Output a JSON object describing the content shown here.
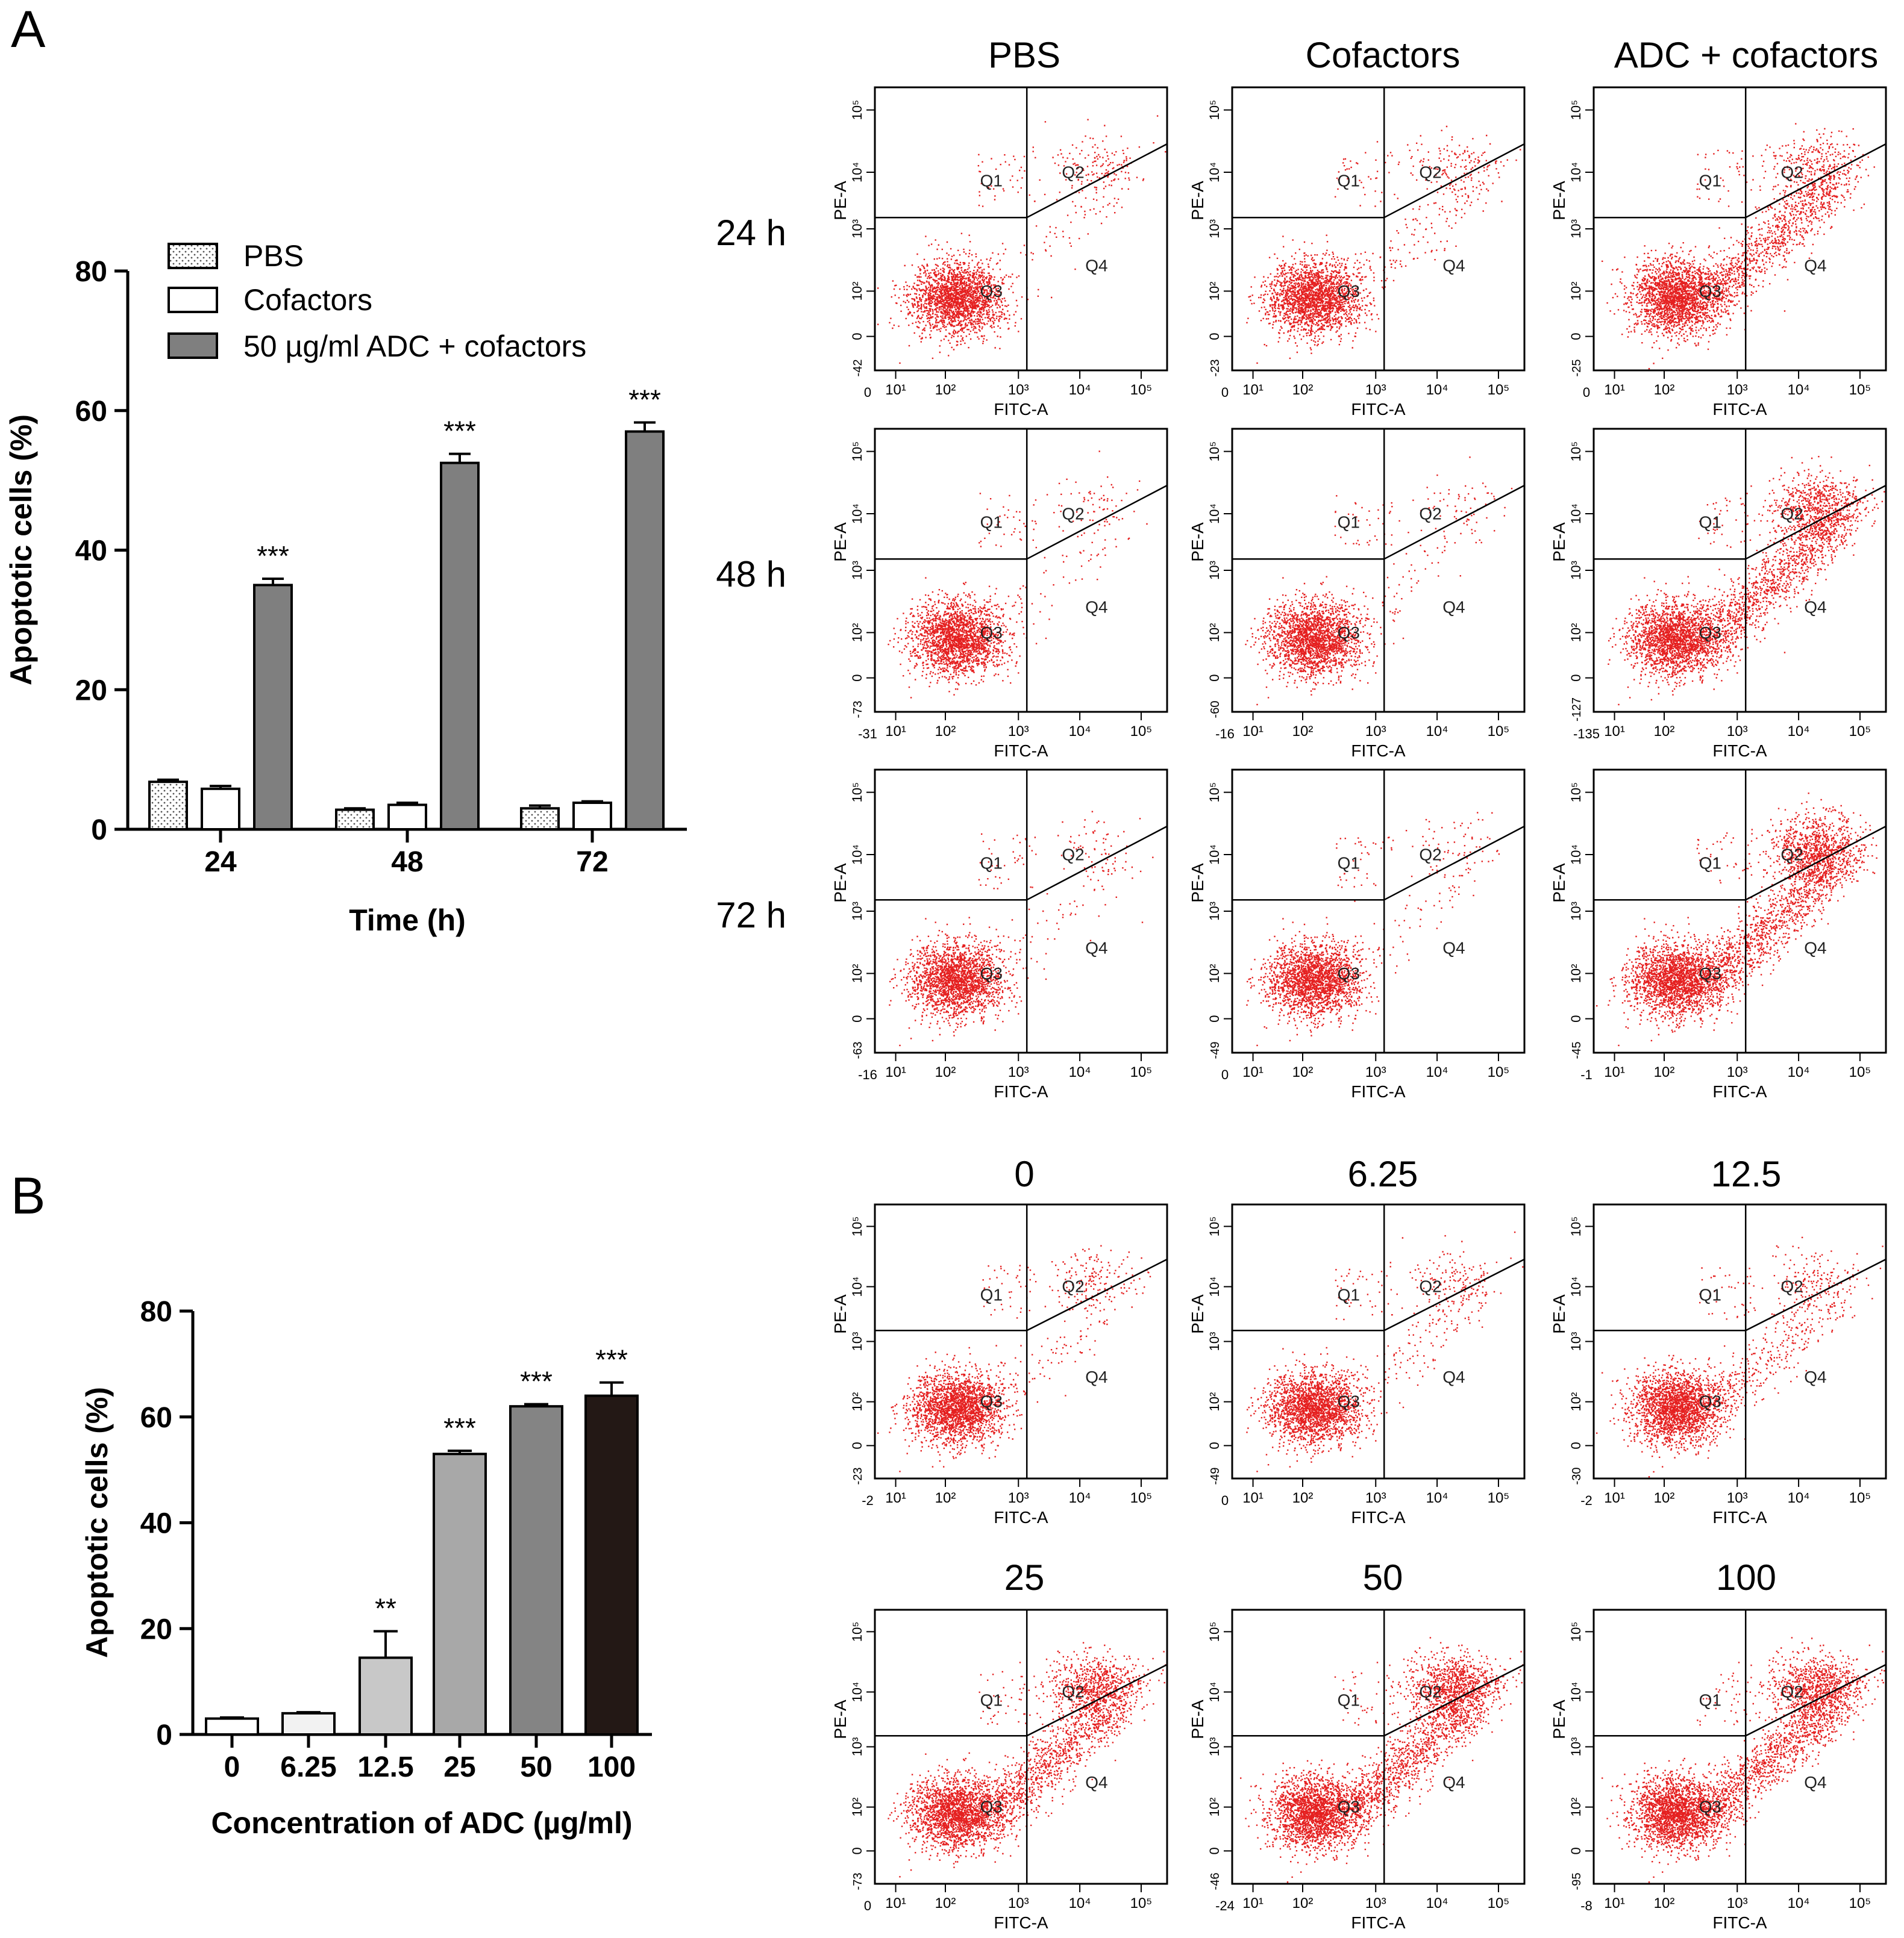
{
  "colors": {
    "dot": "#e52020",
    "axis": "#000000",
    "bar_dark_gray": "#7f7f7f",
    "bar_light": "#f2f2f2",
    "bar_b_12_5": "#c8c8c8",
    "bar_b_25": "#a8a8a8",
    "bar_b_50": "#848484",
    "bar_b_100": "#231815"
  },
  "panels": {
    "A": "A",
    "B": "B"
  },
  "chart_data": [
    {
      "id": "A-bar",
      "type": "bar",
      "title": "",
      "xlabel": "Time (h)",
      "ylabel": "Apoptotic cells (%)",
      "ylim": [
        0,
        80
      ],
      "yticks": [
        "0",
        "20",
        "40",
        "60",
        "80"
      ],
      "categories": [
        "24",
        "48",
        "72"
      ],
      "series": [
        {
          "name": "PBS",
          "values": [
            6.8,
            2.8,
            3.0
          ],
          "errors": [
            0.3,
            0.2,
            0.4
          ],
          "fill": "dotted"
        },
        {
          "name": "Cofactors",
          "values": [
            5.8,
            3.5,
            3.8
          ],
          "errors": [
            0.4,
            0.3,
            0.2
          ],
          "fill": "white"
        },
        {
          "name": "50 µg/ml ADC + cofactors",
          "values": [
            35.0,
            52.5,
            57.0
          ],
          "errors": [
            0.9,
            1.3,
            1.3
          ],
          "fill": "gray"
        }
      ],
      "annotations": [
        "***",
        "***",
        "***"
      ],
      "legend": "top-left"
    },
    {
      "id": "B-bar",
      "type": "bar",
      "title": "",
      "xlabel": "Concentration of ADC (µg/ml)",
      "ylabel": "Apoptotic cells (%)",
      "ylim": [
        0,
        80
      ],
      "yticks": [
        "0",
        "20",
        "40",
        "60",
        "80"
      ],
      "categories": [
        "0",
        "6.25",
        "12.5",
        "25",
        "50",
        "100"
      ],
      "values": [
        3.0,
        4.0,
        14.5,
        53.0,
        62.0,
        64.0
      ],
      "errors": [
        0.2,
        0.2,
        5.0,
        0.6,
        0.4,
        2.5
      ],
      "annotations": [
        "",
        "",
        "**",
        "***",
        "***",
        "***"
      ]
    },
    {
      "id": "A-flow",
      "type": "scatter",
      "column_titles": [
        "PBS",
        "Cofactors",
        "ADC + cofactors"
      ],
      "row_titles": [
        "24 h",
        "48 h",
        "72 h"
      ],
      "xlabel": "FITC-A",
      "ylabel": "PE-A",
      "quadrants": [
        "Q1",
        "Q2",
        "Q3",
        "Q4"
      ],
      "x_tick_labels": [
        "10¹",
        "10²",
        "10³",
        "10⁴",
        "10⁵"
      ],
      "y_tick_labels": [
        "10⁵",
        "10⁴",
        "10³",
        "10²",
        "0"
      ],
      "plots": [
        {
          "xmin": "0",
          "ymin": "-42",
          "q2": 0.05,
          "q4": 0.02
        },
        {
          "xmin": "0",
          "ymin": "-23",
          "q2": 0.05,
          "q4": 0.04
        },
        {
          "xmin": "0",
          "ymin": "-25",
          "q2": 0.1,
          "q4": 0.28
        },
        {
          "xmin": "-31",
          "ymin": "-73",
          "q2": 0.02,
          "q4": 0.02
        },
        {
          "xmin": "-16",
          "ymin": "-60",
          "q2": 0.02,
          "q4": 0.02
        },
        {
          "xmin": "-135",
          "ymin": "-127",
          "q2": 0.22,
          "q4": 0.32
        },
        {
          "xmin": "-16",
          "ymin": "-63",
          "q2": 0.02,
          "q4": 0.02
        },
        {
          "xmin": "0",
          "ymin": "-49",
          "q2": 0.02,
          "q4": 0.02
        },
        {
          "xmin": "-1",
          "ymin": "-45",
          "q2": 0.28,
          "q4": 0.32
        }
      ]
    },
    {
      "id": "B-flow",
      "type": "scatter",
      "column_titles": [
        "0",
        "6.25",
        "12.5",
        "25",
        "50",
        "100"
      ],
      "xlabel": "FITC-A",
      "ylabel": "PE-A",
      "quadrants": [
        "Q1",
        "Q2",
        "Q3",
        "Q4"
      ],
      "x_tick_labels": [
        "10¹",
        "10²",
        "10³",
        "10⁴",
        "10⁵"
      ],
      "y_tick_labels": [
        "10⁵",
        "10⁴",
        "10³",
        "10²",
        "0"
      ],
      "plots": [
        {
          "xmin": "-2",
          "ymin": "-23",
          "q2": 0.05,
          "q4": 0.03
        },
        {
          "xmin": "0",
          "ymin": "-49",
          "q2": 0.05,
          "q4": 0.04
        },
        {
          "xmin": "-2",
          "ymin": "-30",
          "q2": 0.05,
          "q4": 0.1
        },
        {
          "xmin": "0",
          "ymin": "-73",
          "q2": 0.22,
          "q4": 0.3
        },
        {
          "xmin": "-24",
          "ymin": "-46",
          "q2": 0.28,
          "q4": 0.32
        },
        {
          "xmin": "-8",
          "ymin": "-95",
          "q2": 0.26,
          "q4": 0.32
        }
      ]
    }
  ]
}
